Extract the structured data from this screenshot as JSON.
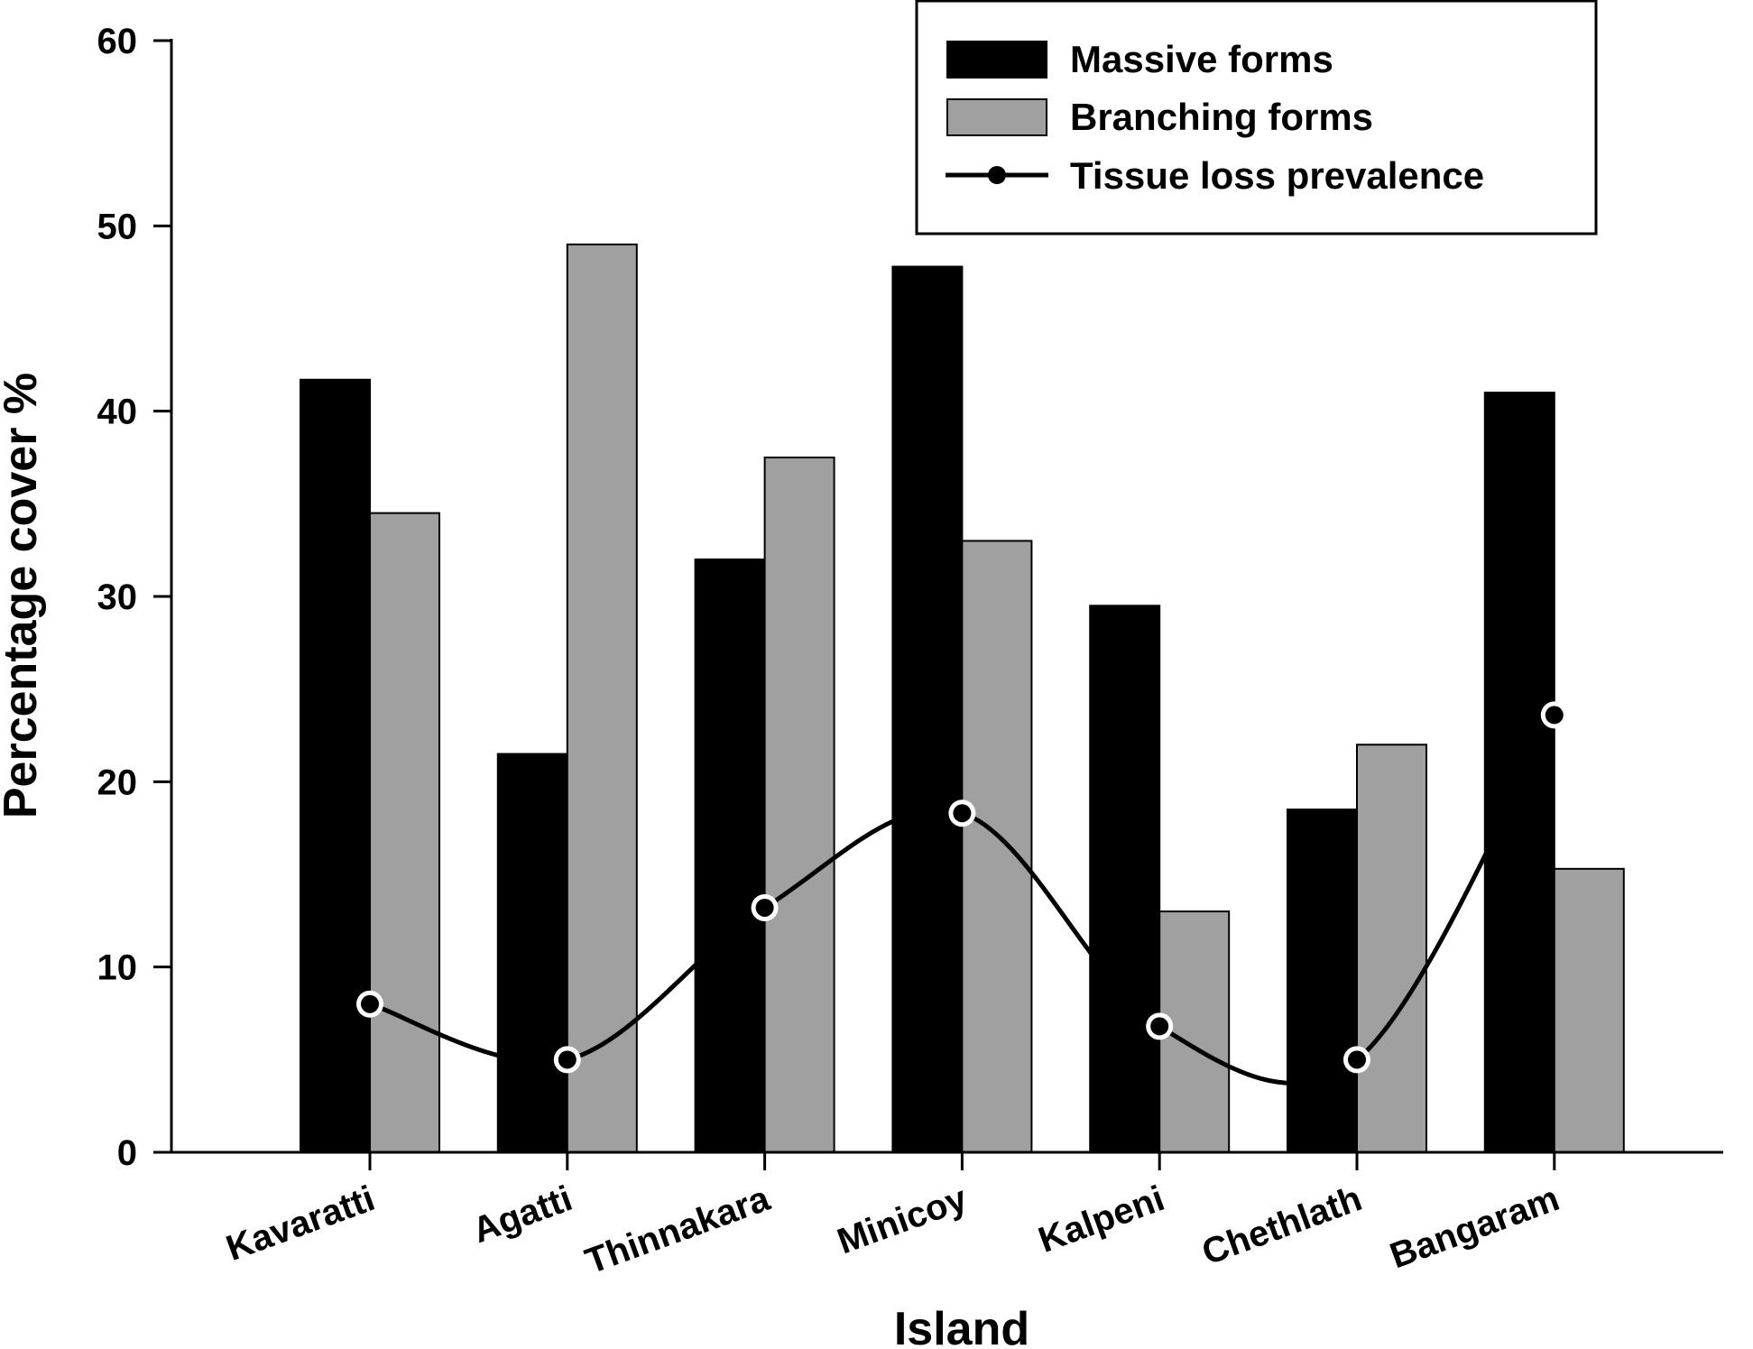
{
  "chart_data": {
    "type": "bar",
    "categories": [
      "Kavaratti",
      "Agatti",
      "Thinnakara",
      "Minicoy",
      "Kalpeni",
      "Chethlath",
      "Bangaram"
    ],
    "series": [
      {
        "name": "Massive forms",
        "kind": "bar",
        "color": "#000000",
        "values": [
          41.7,
          21.5,
          32.0,
          47.8,
          29.5,
          18.5,
          41.0
        ]
      },
      {
        "name": "Branching forms",
        "kind": "bar",
        "color": "#a0a0a0",
        "values": [
          34.5,
          49.0,
          37.5,
          33.0,
          13.0,
          22.0,
          15.3
        ]
      },
      {
        "name": "Tissue loss prevalence",
        "kind": "line",
        "color": "#000000",
        "values": [
          8.0,
          5.0,
          13.2,
          18.3,
          6.8,
          5.0,
          23.6
        ]
      }
    ],
    "xlabel": "Island",
    "ylabel": "Percentage cover %",
    "ylim": [
      0,
      60
    ],
    "yticks": [
      0,
      10,
      20,
      30,
      40,
      50,
      60
    ],
    "grid": false,
    "legend_position": "top-right"
  }
}
